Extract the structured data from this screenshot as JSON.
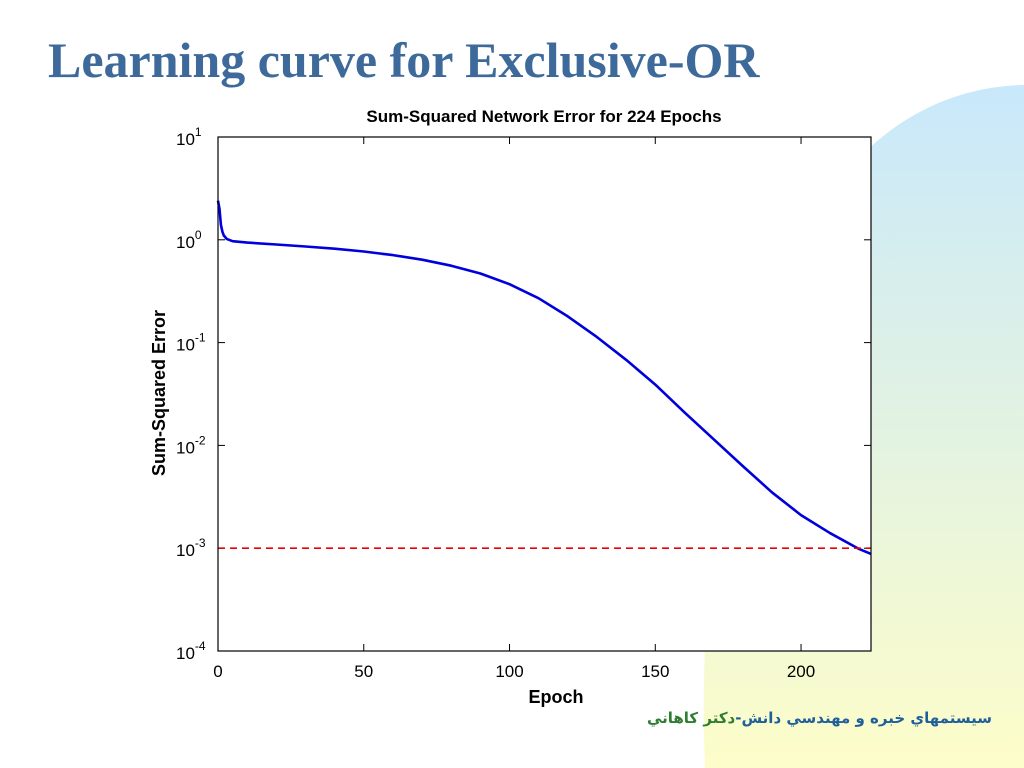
{
  "slide": {
    "title": "Learning curve for Exclusive-OR",
    "title_color": "#3d6a9a",
    "footer_part1": "سيستمهاي خبره و مهندسي دانش-",
    "footer_part2": "دكتر كاهاني",
    "footer_color1": "#1f5f9a",
    "footer_color2": "#2e7d32",
    "bg_gradient_top": "#c8e8fb",
    "bg_gradient_bottom": "#fdfdc9"
  },
  "chart_data": {
    "type": "line",
    "title": "Sum-Squared Network Error for 224 Epochs",
    "xlabel": "Epoch",
    "ylabel": "Sum-Squared Error",
    "xlim": [
      0,
      224
    ],
    "ylim": [
      0.0001,
      10
    ],
    "yscale": "log",
    "grid": false,
    "x_ticks": [
      0,
      50,
      100,
      150,
      200
    ],
    "y_ticks": [
      {
        "value": 10,
        "base": "10",
        "exp": "1"
      },
      {
        "value": 1,
        "base": "10",
        "exp": "0"
      },
      {
        "value": 0.1,
        "base": "10",
        "exp": "-1"
      },
      {
        "value": 0.01,
        "base": "10",
        "exp": "-2"
      },
      {
        "value": 0.001,
        "base": "10",
        "exp": "-3"
      },
      {
        "value": 0.0001,
        "base": "10",
        "exp": "-4"
      }
    ],
    "series": [
      {
        "color": "#0000dd",
        "x": [
          0,
          0.5,
          1,
          1.5,
          2,
          3,
          5,
          10,
          20,
          30,
          40,
          50,
          60,
          70,
          80,
          90,
          100,
          110,
          120,
          130,
          140,
          150,
          160,
          170,
          180,
          190,
          200,
          210,
          220,
          224
        ],
        "y": [
          2.4,
          2.0,
          1.4,
          1.2,
          1.1,
          1.02,
          0.97,
          0.94,
          0.9,
          0.86,
          0.82,
          0.77,
          0.71,
          0.64,
          0.56,
          0.47,
          0.37,
          0.27,
          0.18,
          0.113,
          0.068,
          0.039,
          0.021,
          0.0115,
          0.0063,
          0.0035,
          0.0021,
          0.0014,
          0.00098,
          0.00088
        ]
      },
      {
        "color": "#ee0000",
        "style": "dashed",
        "x": [
          0,
          224
        ],
        "y": [
          0.001,
          0.001
        ]
      }
    ]
  }
}
